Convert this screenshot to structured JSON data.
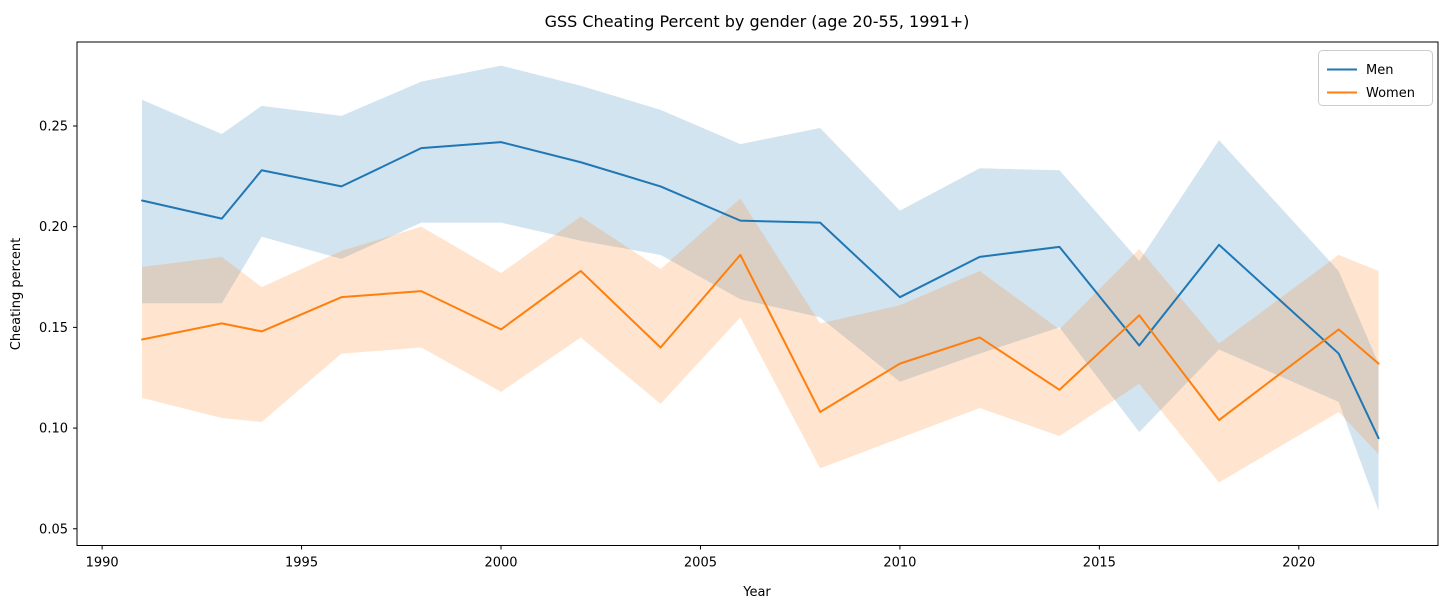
{
  "title": "GSS Cheating Percent by gender (age 20-55, 1991+)",
  "chart_data": {
    "type": "line",
    "title": "GSS Cheating Percent by gender (age 20-55, 1991+)",
    "xlabel": "Year",
    "ylabel": "Cheating percent",
    "x": [
      1991,
      1993,
      1994,
      1996,
      1998,
      2000,
      2002,
      2004,
      2006,
      2008,
      2010,
      2012,
      2014,
      2016,
      2018,
      2021,
      2022
    ],
    "series": [
      {
        "name": "Men",
        "color": "#1f77b4",
        "values": [
          0.213,
          0.204,
          0.228,
          0.22,
          0.239,
          0.242,
          0.232,
          0.22,
          0.203,
          0.202,
          0.165,
          0.185,
          0.19,
          0.141,
          0.191,
          0.137,
          0.095
        ],
        "upper": [
          0.263,
          0.246,
          0.26,
          0.255,
          0.272,
          0.28,
          0.27,
          0.258,
          0.241,
          0.249,
          0.208,
          0.229,
          0.228,
          0.183,
          0.243,
          0.178,
          0.132
        ],
        "lower": [
          0.162,
          0.162,
          0.195,
          0.184,
          0.202,
          0.202,
          0.193,
          0.186,
          0.164,
          0.155,
          0.123,
          0.137,
          0.15,
          0.098,
          0.139,
          0.113,
          0.059
        ]
      },
      {
        "name": "Women",
        "color": "#ff7f0e",
        "values": [
          0.144,
          0.152,
          0.148,
          0.165,
          0.168,
          0.149,
          0.178,
          0.14,
          0.186,
          0.108,
          0.132,
          0.145,
          0.119,
          0.156,
          0.104,
          0.149,
          0.132
        ],
        "upper": [
          0.18,
          0.185,
          0.17,
          0.188,
          0.2,
          0.177,
          0.205,
          0.179,
          0.214,
          0.152,
          0.161,
          0.178,
          0.149,
          0.189,
          0.142,
          0.186,
          0.178
        ],
        "lower": [
          0.115,
          0.105,
          0.103,
          0.137,
          0.14,
          0.118,
          0.145,
          0.112,
          0.155,
          0.08,
          0.095,
          0.11,
          0.096,
          0.122,
          0.073,
          0.108,
          0.087
        ]
      }
    ],
    "band_alpha": 0.2,
    "line_width": 2,
    "xticks": [
      1990,
      1995,
      2000,
      2005,
      2010,
      2015,
      2020
    ],
    "yticks": [
      0.05,
      0.1,
      0.15,
      0.2,
      0.25
    ],
    "ytick_labels": [
      "0.05",
      "0.10",
      "0.15",
      "0.20",
      "0.25"
    ],
    "xlim": [
      1989.37,
      2023.49
    ],
    "ylim": [
      0.0417,
      0.2917
    ],
    "grid": false,
    "legend_position": "upper right"
  }
}
